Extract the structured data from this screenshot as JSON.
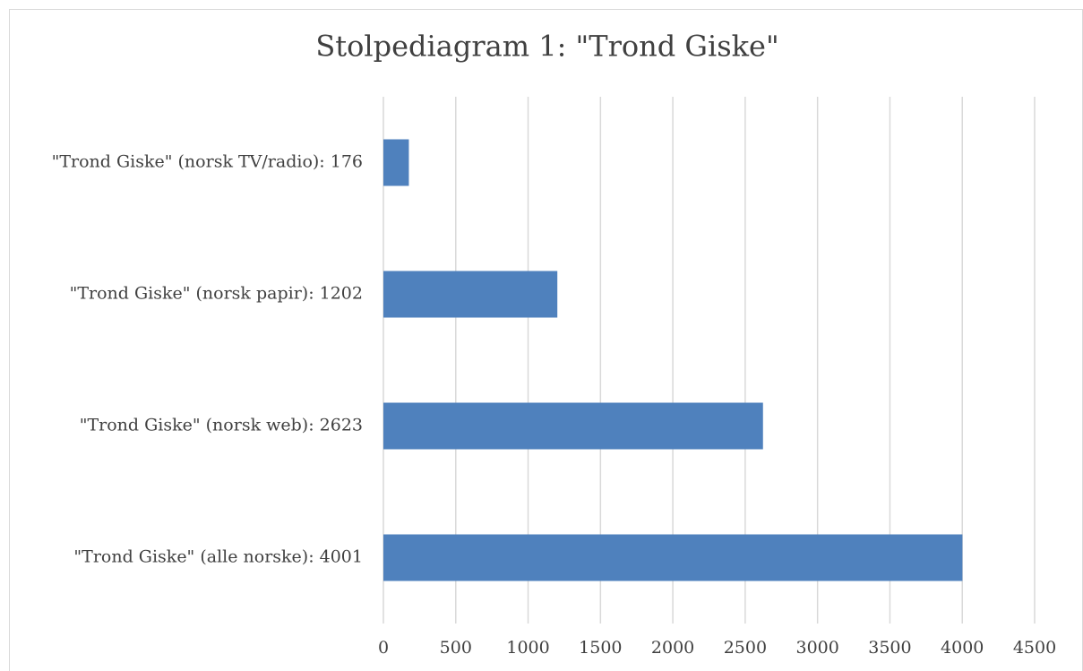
{
  "chart_data": {
    "type": "barh",
    "title": "Stolpediagram 1: \"Trond Giske\"",
    "categories": [
      "\"Trond Giske\" (norsk TV/radio): 176",
      "\"Trond Giske\" (norsk papir): 1202",
      "\"Trond Giske\" (norsk web): 2623",
      "\"Trond Giske\" (alle norske): 4001"
    ],
    "values": [
      176,
      1202,
      2623,
      4001
    ],
    "color": "#4f81bd",
    "xlim": [
      0,
      4500
    ],
    "xticks": [
      0,
      500,
      1000,
      1500,
      2000,
      2500,
      3000,
      3500,
      4000,
      4500
    ],
    "grid": true
  }
}
